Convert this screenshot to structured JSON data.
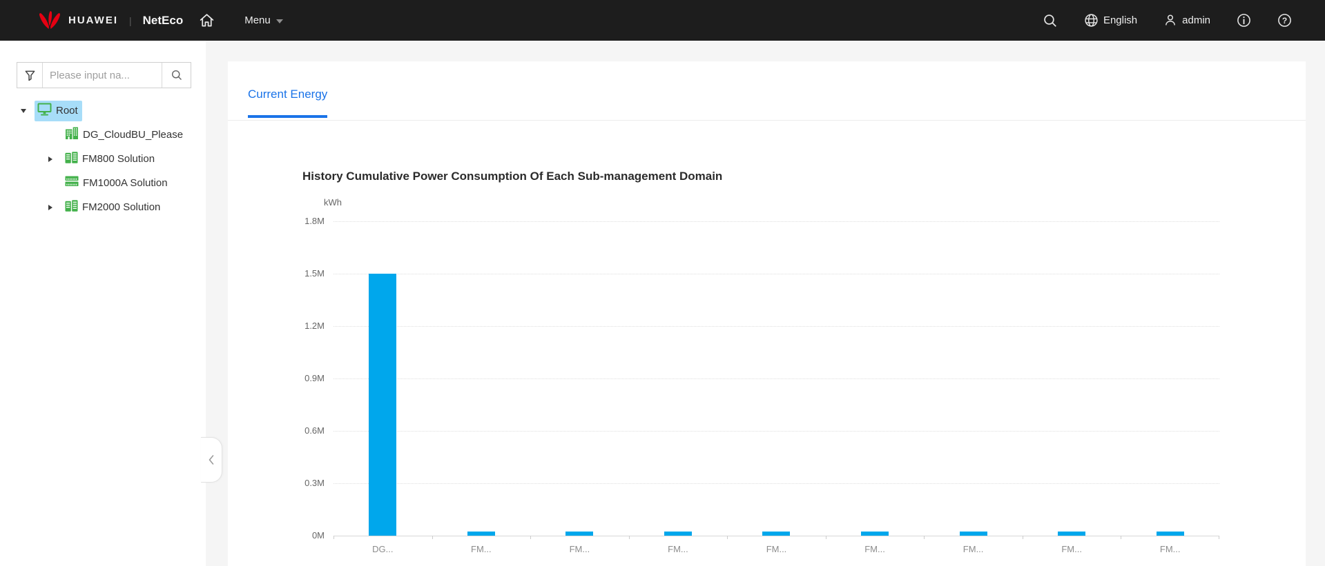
{
  "colors": {
    "accent": "#1a73e8",
    "bar": "#00a7ec",
    "highlight": "#a7ddf8",
    "icon_green": "#43b14b",
    "header_bg": "#1d1d1d",
    "brand_red": "#e60012"
  },
  "header": {
    "brand": "HUAWEI",
    "separator": "|",
    "product": "NetEco",
    "menu_label": "Menu",
    "language": "English",
    "user": "admin"
  },
  "sidebar": {
    "filter_placeholder": "Please input na...",
    "tree": [
      {
        "label": "Root",
        "icon": "monitor-icon",
        "arrow": "expanded",
        "level": 0,
        "selected": true
      },
      {
        "label": "DG_CloudBU_Please",
        "icon": "building-icon",
        "arrow": "none",
        "level": 1,
        "selected": false
      },
      {
        "label": "FM800 Solution",
        "icon": "solution-icon",
        "arrow": "collapsed",
        "level": 1,
        "selected": false
      },
      {
        "label": "FM1000A Solution",
        "icon": "rack-icon",
        "arrow": "none",
        "level": 1,
        "selected": false
      },
      {
        "label": "FM2000 Solution",
        "icon": "solution-icon",
        "arrow": "collapsed",
        "level": 1,
        "selected": false
      }
    ]
  },
  "main": {
    "tabs": [
      {
        "label": "Current Energy",
        "active": true
      }
    ]
  },
  "chart_data": {
    "type": "bar",
    "title": "History Cumulative Power Consumption Of Each Sub-management Domain",
    "ylabel": "kWh",
    "categories": [
      "DG...",
      "FM...",
      "FM...",
      "FM...",
      "FM...",
      "FM...",
      "FM...",
      "FM...",
      "FM..."
    ],
    "values": [
      1500000,
      25000,
      25000,
      25000,
      25000,
      25000,
      25000,
      25000,
      25000
    ],
    "ylim": [
      0,
      1800000
    ],
    "y_ticks": [
      "0M",
      "0.3M",
      "0.6M",
      "0.9M",
      "1.2M",
      "1.5M",
      "1.8M"
    ],
    "grid": "dotted-horizontal",
    "legend": "none"
  }
}
